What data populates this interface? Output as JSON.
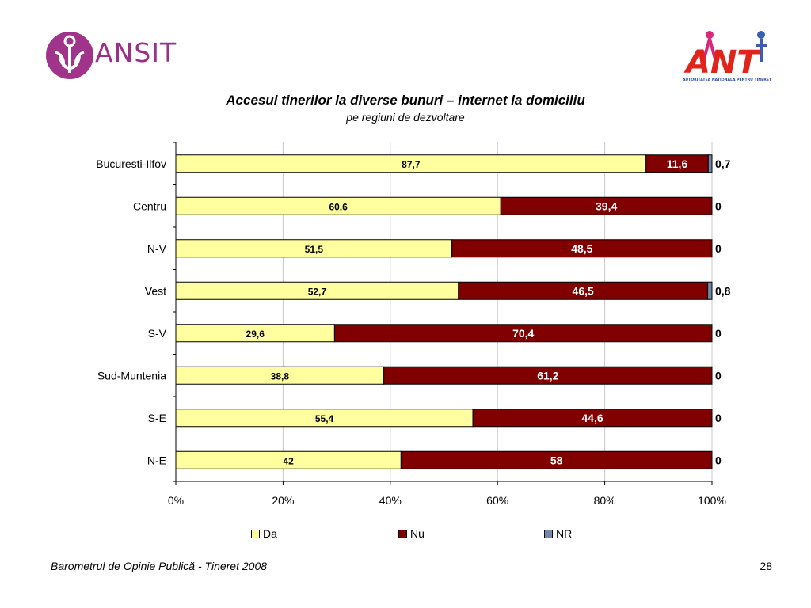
{
  "header": {
    "logo_left_text": "ANSIT",
    "logo_right_text": "ANT",
    "logo_right_caption": "AUTORITATEA NATIONALA PENTRU TINERET"
  },
  "colors": {
    "da": "#ffffa0",
    "nu": "#800000",
    "nr": "#7388a8"
  },
  "chart_data": {
    "type": "bar",
    "orientation": "horizontal",
    "stacked": "percent",
    "title": "Accesul tinerilor la diverse bunuri – internet la domiciliu",
    "subtitle": "pe regiuni de dezvoltare",
    "categories": [
      "Bucuresti-Ilfov",
      "Centru",
      "N-V",
      "Vest",
      "S-V",
      "Sud-Muntenia",
      "S-E",
      "N-E"
    ],
    "series": [
      {
        "name": "Da",
        "values": [
          87.7,
          60.6,
          51.5,
          52.7,
          29.6,
          38.8,
          55.4,
          42
        ],
        "labels": [
          "87,7",
          "60,6",
          "51,5",
          "52,7",
          "29,6",
          "38,8",
          "55,4",
          "42"
        ]
      },
      {
        "name": "Nu",
        "values": [
          11.6,
          39.4,
          48.5,
          46.5,
          70.4,
          61.2,
          44.6,
          58
        ],
        "labels": [
          "11,6",
          "39,4",
          "48,5",
          "46,5",
          "70,4",
          "61,2",
          "44,6",
          "58"
        ]
      },
      {
        "name": "NR",
        "values": [
          0.7,
          0,
          0,
          0.8,
          0,
          0,
          0,
          0
        ],
        "labels": [
          "0,7",
          "0",
          "0",
          "0,8",
          "0",
          "0",
          "0",
          "0"
        ]
      }
    ],
    "x_ticks": [
      "0%",
      "20%",
      "40%",
      "60%",
      "80%",
      "100%"
    ],
    "xlim": [
      0,
      100
    ],
    "grid": true,
    "legend": "bottom"
  },
  "footer": {
    "source": "Barometrul de Opinie Publică - Tineret 2008",
    "page_number": "28"
  }
}
